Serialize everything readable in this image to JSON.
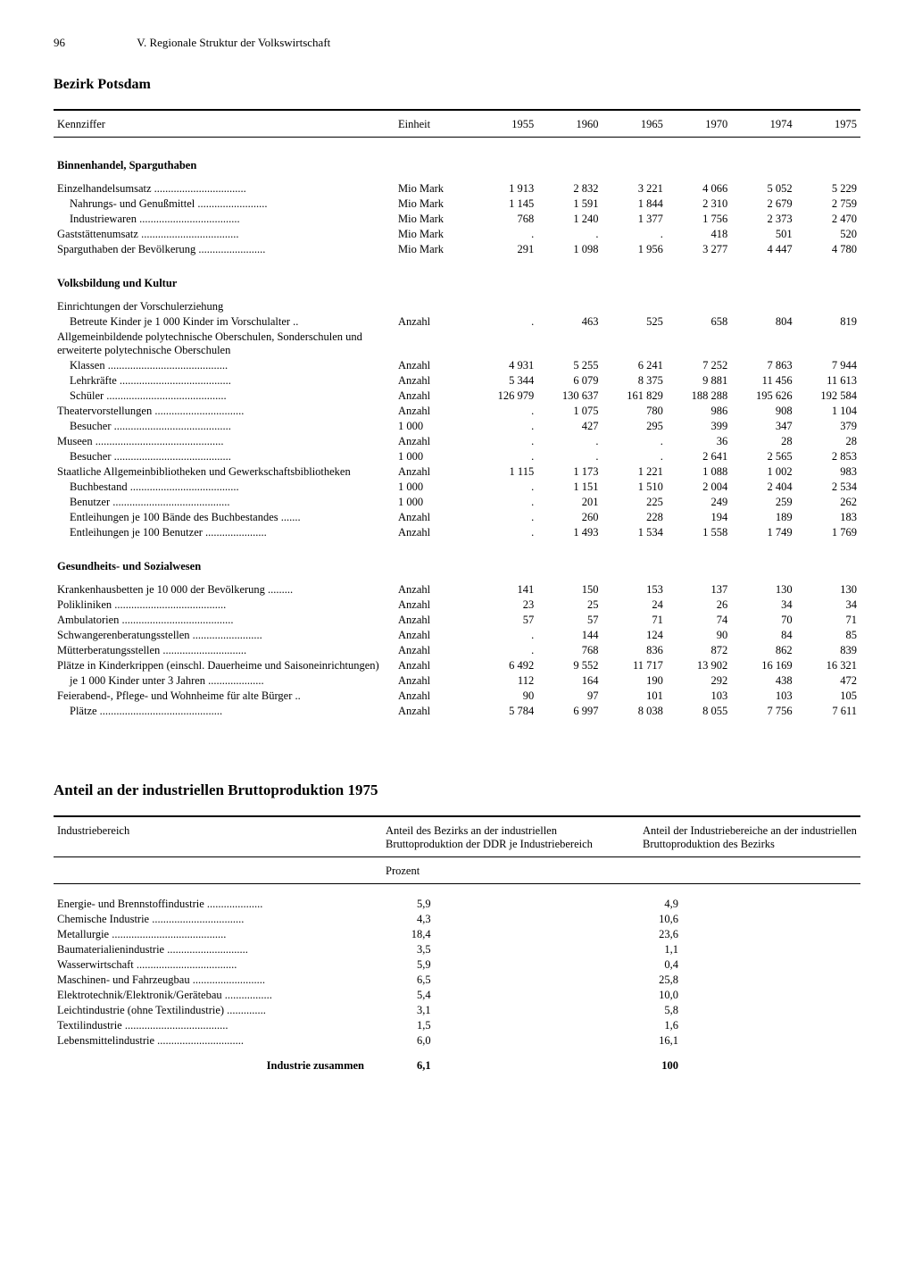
{
  "page_number": "96",
  "chapter": "V. Regionale Struktur der Volkswirtschaft",
  "region": "Bezirk Potsdam",
  "table1": {
    "headers": [
      "Kennziffer",
      "Einheit",
      "1955",
      "1960",
      "1965",
      "1970",
      "1974",
      "1975"
    ],
    "sections": [
      {
        "title": "Binnenhandel, Sparguthaben",
        "rows": [
          {
            "label": "Einzelhandelsumsatz",
            "indent": 0,
            "unit": "Mio Mark",
            "vals": [
              "1 913",
              "2 832",
              "3 221",
              "4 066",
              "5 052",
              "5 229"
            ]
          },
          {
            "label": "Nahrungs- und Genußmittel",
            "indent": 1,
            "unit": "Mio Mark",
            "vals": [
              "1 145",
              "1 591",
              "1 844",
              "2 310",
              "2 679",
              "2 759"
            ]
          },
          {
            "label": "Industriewaren",
            "indent": 1,
            "unit": "Mio Mark",
            "vals": [
              "768",
              "1 240",
              "1 377",
              "1 756",
              "2 373",
              "2 470"
            ]
          },
          {
            "label": "Gaststättenumsatz",
            "indent": 0,
            "unit": "Mio Mark",
            "vals": [
              ".",
              ".",
              ".",
              "418",
              "501",
              "520"
            ]
          },
          {
            "label": "Sparguthaben der Bevölkerung",
            "indent": 0,
            "unit": "Mio Mark",
            "vals": [
              "291",
              "1 098",
              "1 956",
              "3 277",
              "4 447",
              "4 780"
            ]
          }
        ]
      },
      {
        "title": "Volksbildung und Kultur",
        "rows": [
          {
            "label": "Einrichtungen der Vorschulerziehung",
            "indent": 0,
            "unit": "",
            "vals": [
              "",
              "",
              "",
              "",
              "",
              ""
            ]
          },
          {
            "label": "Betreute Kinder je 1 000 Kinder im Vorschulalter",
            "indent": 1,
            "unit": "Anzahl",
            "vals": [
              ".",
              "463",
              "525",
              "658",
              "804",
              "819"
            ]
          },
          {
            "label": "Allgemeinbildende polytechnische Oberschulen, Sonderschulen und erweiterte polytechnische Oberschulen",
            "indent": 0,
            "unit": "",
            "vals": [
              "",
              "",
              "",
              "",
              "",
              ""
            ]
          },
          {
            "label": "Klassen",
            "indent": 1,
            "unit": "Anzahl",
            "vals": [
              "4 931",
              "5 255",
              "6 241",
              "7 252",
              "7 863",
              "7 944"
            ]
          },
          {
            "label": "Lehrkräfte",
            "indent": 1,
            "unit": "Anzahl",
            "vals": [
              "5 344",
              "6 079",
              "8 375",
              "9 881",
              "11 456",
              "11 613"
            ]
          },
          {
            "label": "Schüler",
            "indent": 1,
            "unit": "Anzahl",
            "vals": [
              "126 979",
              "130 637",
              "161 829",
              "188 288",
              "195 626",
              "192 584"
            ]
          },
          {
            "label": "Theatervorstellungen",
            "indent": 0,
            "unit": "Anzahl",
            "vals": [
              ".",
              "1 075",
              "780",
              "986",
              "908",
              "1 104"
            ]
          },
          {
            "label": "Besucher",
            "indent": 1,
            "unit": "1 000",
            "vals": [
              ".",
              "427",
              "295",
              "399",
              "347",
              "379"
            ]
          },
          {
            "label": "Museen",
            "indent": 0,
            "unit": "Anzahl",
            "vals": [
              ".",
              ".",
              ".",
              "36",
              "28",
              "28"
            ]
          },
          {
            "label": "Besucher",
            "indent": 1,
            "unit": "1 000",
            "vals": [
              ".",
              ".",
              ".",
              "2 641",
              "2 565",
              "2 853"
            ]
          },
          {
            "label": "Staatliche Allgemeinbibliotheken und Gewerkschaftsbibliotheken",
            "indent": 0,
            "unit": "Anzahl",
            "vals": [
              "1 115",
              "1 173",
              "1 221",
              "1 088",
              "1 002",
              "983"
            ]
          },
          {
            "label": "Buchbestand",
            "indent": 1,
            "unit": "1 000",
            "vals": [
              ".",
              "1 151",
              "1 510",
              "2 004",
              "2 404",
              "2 534"
            ]
          },
          {
            "label": "Benutzer",
            "indent": 1,
            "unit": "1 000",
            "vals": [
              ".",
              "201",
              "225",
              "249",
              "259",
              "262"
            ]
          },
          {
            "label": "Entleihungen je 100 Bände des Buchbestandes",
            "indent": 1,
            "unit": "Anzahl",
            "vals": [
              ".",
              "260",
              "228",
              "194",
              "189",
              "183"
            ]
          },
          {
            "label": "Entleihungen je 100 Benutzer",
            "indent": 1,
            "unit": "Anzahl",
            "vals": [
              ".",
              "1 493",
              "1 534",
              "1 558",
              "1 749",
              "1 769"
            ]
          }
        ]
      },
      {
        "title": "Gesundheits- und Sozialwesen",
        "rows": [
          {
            "label": "Krankenhausbetten je 10 000 der Bevölkerung",
            "indent": 0,
            "unit": "Anzahl",
            "vals": [
              "141",
              "150",
              "153",
              "137",
              "130",
              "130"
            ]
          },
          {
            "label": "Polikliniken",
            "indent": 0,
            "unit": "Anzahl",
            "vals": [
              "23",
              "25",
              "24",
              "26",
              "34",
              "34"
            ]
          },
          {
            "label": "Ambulatorien",
            "indent": 0,
            "unit": "Anzahl",
            "vals": [
              "57",
              "57",
              "71",
              "74",
              "70",
              "71"
            ]
          },
          {
            "label": "Schwangerenberatungsstellen",
            "indent": 0,
            "unit": "Anzahl",
            "vals": [
              ".",
              "144",
              "124",
              "90",
              "84",
              "85"
            ]
          },
          {
            "label": "Mütterberatungsstellen",
            "indent": 0,
            "unit": "Anzahl",
            "vals": [
              ".",
              "768",
              "836",
              "872",
              "862",
              "839"
            ]
          },
          {
            "label": "Plätze in Kinderkrippen (einschl. Dauerheime und Saisoneinrichtungen)",
            "indent": 0,
            "unit": "Anzahl",
            "vals": [
              "6 492",
              "9 552",
              "11 717",
              "13 902",
              "16 169",
              "16 321"
            ]
          },
          {
            "label": "je 1 000 Kinder unter 3 Jahren",
            "indent": 1,
            "unit": "Anzahl",
            "vals": [
              "112",
              "164",
              "190",
              "292",
              "438",
              "472"
            ]
          },
          {
            "label": "Feierabend-, Pflege- und Wohnheime für alte Bürger",
            "indent": 0,
            "unit": "Anzahl",
            "vals": [
              "90",
              "97",
              "101",
              "103",
              "103",
              "105"
            ]
          },
          {
            "label": "Plätze",
            "indent": 1,
            "unit": "Anzahl",
            "vals": [
              "5 784",
              "6 997",
              "8 038",
              "8 055",
              "7 756",
              "7 611"
            ]
          }
        ]
      }
    ]
  },
  "table2_title": "Anteil an der industriellen Bruttoproduktion 1975",
  "table2": {
    "header_col1": "Industriebereich",
    "header_col2": "Anteil des Bezirks an der industriellen Bruttoproduktion der DDR je Industriebereich",
    "header_col3": "Anteil der Industriebereiche an der industriellen Bruttoproduktion des Bezirks",
    "unit_label": "Prozent",
    "rows": [
      {
        "label": "Energie- und Brennstoffindustrie",
        "v1": "5,9",
        "v2": "4,9"
      },
      {
        "label": "Chemische Industrie",
        "v1": "4,3",
        "v2": "10,6"
      },
      {
        "label": "Metallurgie",
        "v1": "18,4",
        "v2": "23,6"
      },
      {
        "label": "Baumaterialienindustrie",
        "v1": "3,5",
        "v2": "1,1"
      },
      {
        "label": "Wasserwirtschaft",
        "v1": "5,9",
        "v2": "0,4"
      },
      {
        "label": "Maschinen- und Fahrzeugbau",
        "v1": "6,5",
        "v2": "25,8"
      },
      {
        "label": "Elektrotechnik/Elektronik/Gerätebau",
        "v1": "5,4",
        "v2": "10,0"
      },
      {
        "label": "Leichtindustrie (ohne Textilindustrie)",
        "v1": "3,1",
        "v2": "5,8"
      },
      {
        "label": "Textilindustrie",
        "v1": "1,5",
        "v2": "1,6"
      },
      {
        "label": "Lebensmittelindustrie",
        "v1": "6,0",
        "v2": "16,1"
      }
    ],
    "total_label": "Industrie zusammen",
    "total_v1": "6,1",
    "total_v2": "100"
  }
}
